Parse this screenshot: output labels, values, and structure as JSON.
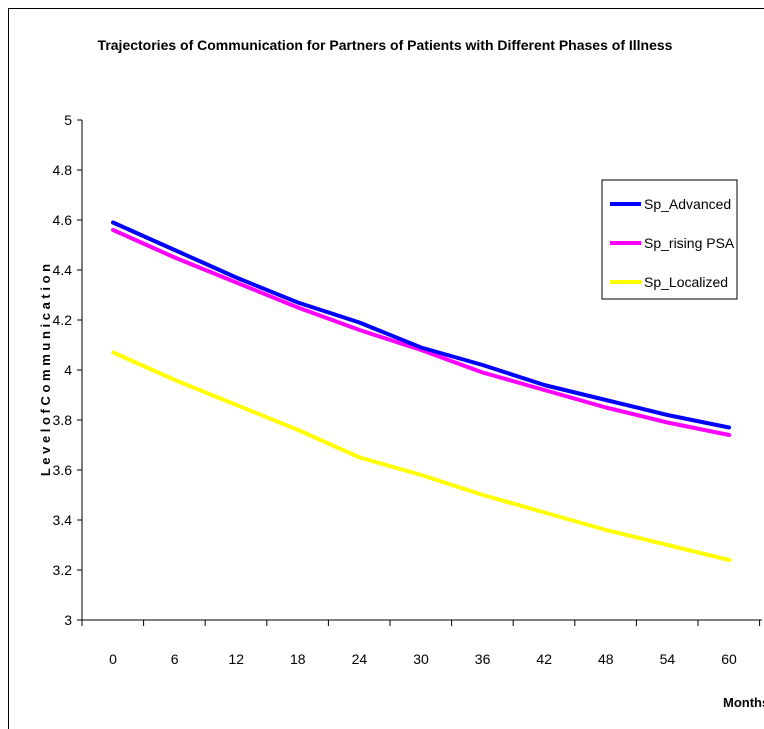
{
  "chart_data": {
    "type": "line",
    "title": "Trajectories of Communication for Partners of Patients with Different Phases of Illness",
    "xlabel": "Months",
    "ylabel": "L e v e l  o f  C o m m u n i c a t i o n",
    "x": [
      0,
      6,
      12,
      18,
      24,
      30,
      36,
      42,
      48,
      54,
      60
    ],
    "ylim": [
      3,
      5
    ],
    "yticks": [
      "3",
      "3.2",
      "3.4",
      "3.6",
      "3.8",
      "4",
      "4.2",
      "4.4",
      "4.6",
      "4.8",
      "5"
    ],
    "xticks": [
      "0",
      "6",
      "12",
      "18",
      "24",
      "30",
      "36",
      "42",
      "48",
      "54",
      "60"
    ],
    "grid": false,
    "legend_position": "right",
    "series": [
      {
        "name": "Sp_Advanced",
        "color": "#0000FF",
        "values": [
          4.59,
          4.48,
          4.37,
          4.27,
          4.19,
          4.09,
          4.02,
          3.94,
          3.88,
          3.82,
          3.77
        ]
      },
      {
        "name": "Sp_rising PSA",
        "color": "#FF00FF",
        "values": [
          4.56,
          4.45,
          4.35,
          4.25,
          4.16,
          4.08,
          3.99,
          3.92,
          3.85,
          3.79,
          3.74
        ]
      },
      {
        "name": "Sp_Localized",
        "color": "#FFFF00",
        "values": [
          4.07,
          3.96,
          3.86,
          3.76,
          3.65,
          3.58,
          3.5,
          3.43,
          3.36,
          3.3,
          3.24
        ]
      }
    ]
  }
}
